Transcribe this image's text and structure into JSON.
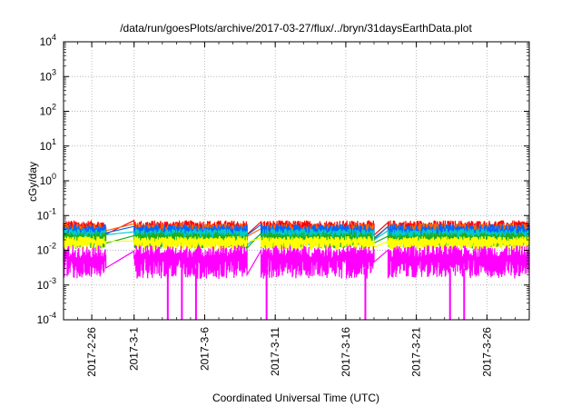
{
  "chart_data": {
    "type": "line",
    "title": "/data/run/goesPlots/archive/2017-03-27/flux/../bryn/31daysEarthData.plot",
    "xlabel": "Coordinated Universal Time (UTC)",
    "ylabel": "cGy/day",
    "yscale": "log",
    "ylim": [
      0.0001,
      10000
    ],
    "xlim": [
      "2017-02-24",
      "2017-03-29"
    ],
    "grid": true,
    "legend": "none",
    "y_ticks": [
      {
        "value": 0.0001,
        "mant": "10",
        "exp": "-4"
      },
      {
        "value": 0.001,
        "mant": "10",
        "exp": "-3"
      },
      {
        "value": 0.01,
        "mant": "10",
        "exp": "-2"
      },
      {
        "value": 0.1,
        "mant": "10",
        "exp": "-1"
      },
      {
        "value": 1,
        "mant": "10",
        "exp": "0"
      },
      {
        "value": 10,
        "mant": "10",
        "exp": "1"
      },
      {
        "value": 100,
        "mant": "10",
        "exp": "2"
      },
      {
        "value": 1000,
        "mant": "10",
        "exp": "3"
      },
      {
        "value": 10000,
        "mant": "10",
        "exp": "4"
      }
    ],
    "x_ticks": [
      {
        "date": "2017-02-26",
        "label": "2017-2-26"
      },
      {
        "date": "2017-03-01",
        "label": "2017-3-1"
      },
      {
        "date": "2017-03-06",
        "label": "2017-3-6"
      },
      {
        "date": "2017-03-11",
        "label": "2017-3-11"
      },
      {
        "date": "2017-03-16",
        "label": "2017-3-16"
      },
      {
        "date": "2017-03-21",
        "label": "2017-3-21"
      },
      {
        "date": "2017-03-26",
        "label": "2017-3-26"
      }
    ],
    "data_segments": [
      {
        "start": "2017-02-24",
        "end": "2017-02-27"
      },
      {
        "start": "2017-02-29",
        "end": "2017-03-09"
      },
      {
        "start": "2017-03-10",
        "end": "2017-03-18"
      },
      {
        "start": "2017-03-19",
        "end": "2017-03-29"
      }
    ],
    "series": [
      {
        "color": "#ff0000",
        "base": 0.045,
        "spread": 0.35
      },
      {
        "color": "#ff6600",
        "base": 0.04,
        "spread": 0.3
      },
      {
        "color": "#0066ff",
        "base": 0.035,
        "spread": 0.35
      },
      {
        "color": "#00cccc",
        "base": 0.028,
        "spread": 0.3
      },
      {
        "color": "#22aa22",
        "base": 0.022,
        "spread": 0.3
      },
      {
        "color": "#ffff00",
        "base": 0.018,
        "spread": 0.25
      },
      {
        "color": "#ff00ff",
        "base": 0.006,
        "spread": 0.6
      }
    ],
    "magenta_dropouts": [
      "2017-03-03",
      "2017-03-04",
      "2017-03-05",
      "2017-03-10",
      "2017-03-17",
      "2017-03-23",
      "2017-03-24"
    ]
  }
}
